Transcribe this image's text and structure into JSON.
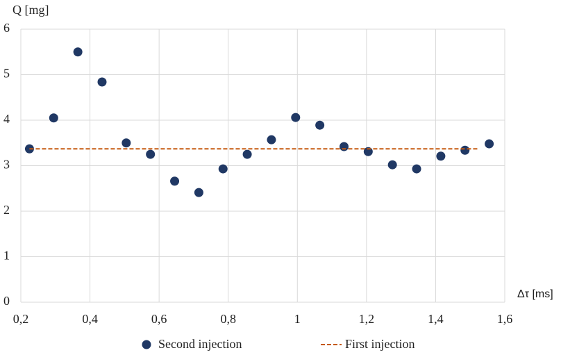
{
  "chart_data": {
    "type": "scatter",
    "ylabel": "Q [mg]",
    "xlabel": "Δτ [ms]",
    "xlim": [
      0.2,
      1.6
    ],
    "xticks": [
      {
        "value": 0.2,
        "label": "0,2"
      },
      {
        "value": 0.4,
        "label": "0,4"
      },
      {
        "value": 0.6,
        "label": "0,6"
      },
      {
        "value": 0.8,
        "label": "0,8"
      },
      1,
      {
        "value": 1.2,
        "label": "1,2"
      },
      {
        "value": 1.4,
        "label": "1,4"
      },
      {
        "value": 1.6,
        "label": "1,6"
      }
    ],
    "ylim": [
      0,
      6
    ],
    "yticks": [
      0,
      1,
      2,
      3,
      4,
      5,
      6
    ],
    "grid": true,
    "series": [
      {
        "name": "Second injection",
        "type": "scatter",
        "color": "#203864",
        "x": [
          0.225,
          0.295,
          0.365,
          0.435,
          0.505,
          0.575,
          0.645,
          0.715,
          0.785,
          0.855,
          0.925,
          0.995,
          1.065,
          1.135,
          1.205,
          1.275,
          1.345,
          1.415,
          1.485,
          1.555
        ],
        "values": [
          3.37,
          4.05,
          5.5,
          4.84,
          3.5,
          3.25,
          2.66,
          2.41,
          2.93,
          3.25,
          3.57,
          4.06,
          3.89,
          3.42,
          3.31,
          3.02,
          2.93,
          3.21,
          3.34,
          3.48
        ]
      },
      {
        "name": "First injection",
        "type": "line",
        "color": "#c55a11",
        "x": [
          0.225,
          1.525
        ],
        "values": [
          3.37,
          3.37
        ]
      }
    ]
  }
}
